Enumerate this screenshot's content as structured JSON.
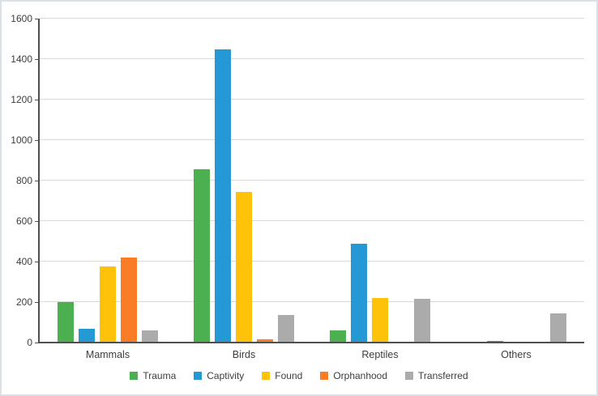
{
  "figure": {
    "background": "#ffffff",
    "border_color": "#dae1e7"
  },
  "chart_data": {
    "type": "bar",
    "title": "",
    "xlabel": "",
    "ylabel": "",
    "categories": [
      "Mammals",
      "Birds",
      "Reptiles",
      "Others"
    ],
    "series": [
      {
        "name": "Trauma",
        "color": "#4caf50",
        "values": [
          200,
          855,
          62,
          0
        ]
      },
      {
        "name": "Captivity",
        "color": "#2599d6",
        "values": [
          70,
          1450,
          490,
          7
        ]
      },
      {
        "name": "Found",
        "color": "#ffc20a",
        "values": [
          375,
          745,
          220,
          0
        ]
      },
      {
        "name": "Orphanhood",
        "color": "#fb7c27",
        "values": [
          420,
          15,
          0,
          0
        ]
      },
      {
        "name": "Transferred",
        "color": "#ababab",
        "values": [
          60,
          135,
          215,
          145
        ]
      }
    ],
    "ylim": [
      0,
      1600
    ],
    "ytick_step": 200,
    "ytick_labels": [
      "0",
      "200",
      "400",
      "600",
      "800",
      "1000",
      "1200",
      "1400",
      "1600"
    ],
    "grid": true,
    "legend_position": "bottom",
    "axis_color": "#4f4f4f",
    "gridline_color": "#d9d9d9",
    "label_color": "#3d3d3d"
  }
}
